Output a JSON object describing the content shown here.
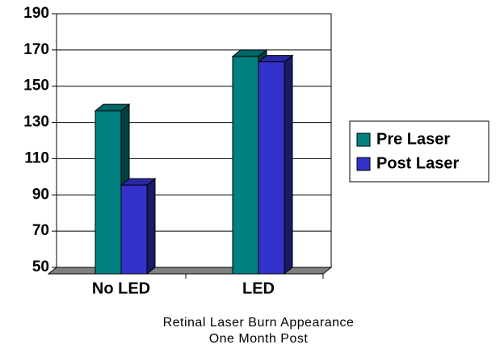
{
  "chart_data": {
    "type": "bar3d",
    "categories": [
      "No LED",
      "LED"
    ],
    "series": [
      {
        "name": "Pre Laser",
        "color": "#008080",
        "values": [
          140,
          170
        ]
      },
      {
        "name": "Post Laser",
        "color": "#3333cc",
        "values": [
          99,
          167
        ]
      }
    ],
    "x_label": [
      "Retinal Laser Burn Appearance",
      "One Month Post"
    ],
    "ylim": [
      50,
      190
    ],
    "yticks": [
      50,
      70,
      90,
      110,
      130,
      150,
      170,
      190
    ],
    "grid": true,
    "legend": "right"
  }
}
